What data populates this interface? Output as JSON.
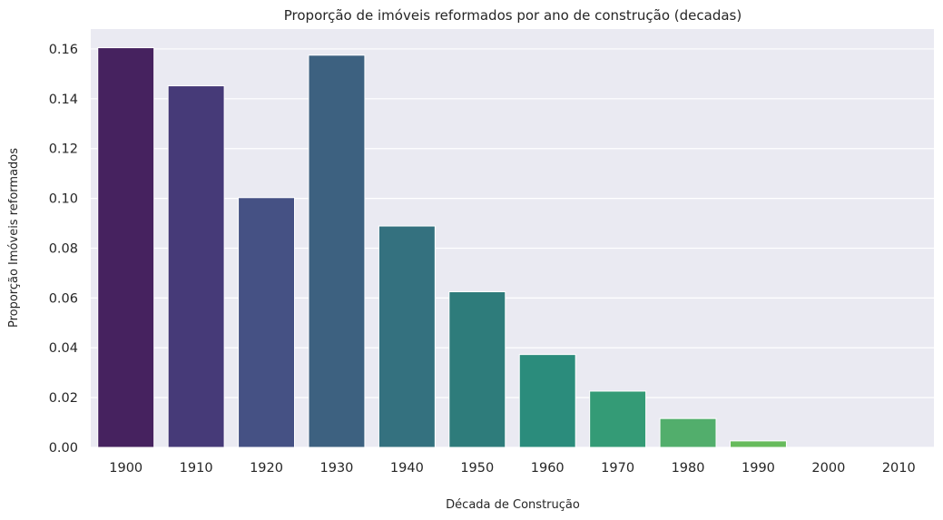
{
  "chart_data": {
    "type": "bar",
    "title": "Proporção de imóveis reformados por ano de construção (decadas)",
    "xlabel": "Década de Construção",
    "ylabel": "Proporção Imóveis reformados",
    "categories": [
      "1900",
      "1910",
      "1920",
      "1930",
      "1940",
      "1950",
      "1960",
      "1970",
      "1980",
      "1990",
      "2000",
      "2010"
    ],
    "values": [
      0.1605,
      0.1452,
      0.1003,
      0.1575,
      0.0889,
      0.0625,
      0.0373,
      0.0226,
      0.0116,
      0.0026,
      0.0,
      0.0
    ],
    "ylim": [
      0,
      0.168
    ],
    "yticks": [
      "0.00",
      "0.02",
      "0.04",
      "0.06",
      "0.08",
      "0.10",
      "0.12",
      "0.14",
      "0.16"
    ],
    "grid": true,
    "colors": [
      "#46225f",
      "#463a78",
      "#455184",
      "#3d6180",
      "#34717f",
      "#2e7c7b",
      "#2b8c7c",
      "#349b76",
      "#52ae6c",
      "#67bb5c",
      "#7fc44f",
      "#9bcd43"
    ]
  }
}
